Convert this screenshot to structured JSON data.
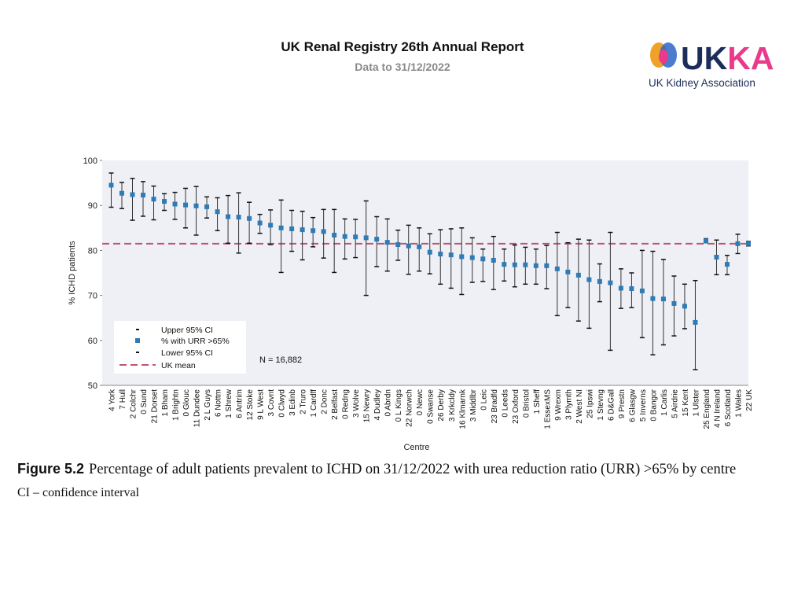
{
  "header": {
    "title": "UK Renal Registry 26th Annual Report",
    "subtitle": "Data to 31/12/2022"
  },
  "logo": {
    "wordmark": "UKKA",
    "tagline": "UK Kidney Association"
  },
  "caption": {
    "figure_label": "Figure 5.2",
    "text": "Percentage of adult patients prevalent to ICHD on 31/12/2022 with urea reduction ratio (URR) >65% by centre",
    "note": "CI – confidence interval"
  },
  "colors": {
    "point": "#2e7bb5",
    "mean_line": "#c0556e",
    "whisker": "#333333",
    "plot_bg": "#eef0f6",
    "logo_orange": "#f0a12a",
    "logo_blue": "#2a66c4",
    "logo_navy": "#1c2d5a",
    "logo_pink": "#ea3a8c"
  },
  "chart_data": {
    "type": "scatter",
    "title": "",
    "xlabel": "Centre",
    "ylabel": "% ICHD patients",
    "ylim": [
      50,
      100
    ],
    "yticks": [
      50,
      60,
      70,
      80,
      90,
      100
    ],
    "uk_mean": 81.5,
    "n_label": "N = 16,882",
    "legend": {
      "upper": "Upper 95% CI",
      "point": "% with URR >65%",
      "lower": "Lower 95% CI",
      "mean": "UK mean"
    },
    "categories": [
      "4 York",
      "7 Hull",
      "2 Colchr",
      "0 Sund",
      "21 Dorset",
      "1 Bham",
      "1 Brightn",
      "0 Glouc",
      "11 Dundee",
      "2 L Guys",
      "6 Nottm",
      "1 Shrew",
      "6 Antrim",
      "12 Stoke",
      "9 L West",
      "3 Covnt",
      "0 Clwyd",
      "3 Edinb",
      "2 Truro",
      "1 Cardff",
      "2 Donc",
      "2 Belfast",
      "0 Redng",
      "3 Wolve",
      "15 Newry",
      "4 Dudley",
      "0 Abrdn",
      "0 L Kings",
      "22 Norwch",
      "0 Newc",
      "0 Swanse",
      "26 Derby",
      "3 Krkcldy",
      "16 Klmarnk",
      "3 Middlbr",
      "0 Leic",
      "23 Bradfd",
      "0 Leeds",
      "23 Oxford",
      "0 Bristol",
      "1 Sheff",
      "1 EssexMS",
      "9 Wrexm",
      "3 Plymth",
      "2 West NI",
      "25 Ipswi",
      "1 Stevng",
      "6 D&Gall",
      "9 Prestn",
      "6 Glasgw",
      "5 Inverns",
      "0 Bangor",
      "1 Carlis",
      "5 Airdrie",
      "15 Kent",
      "1 Ulster",
      "25 England",
      "4 N Ireland",
      "6 Scotland",
      "1 Wales",
      "22 UK"
    ],
    "series": [
      {
        "name": "% with URR >65%",
        "values": [
          94.5,
          92.7,
          92.4,
          92.3,
          91.4,
          90.9,
          90.3,
          90.1,
          89.9,
          89.7,
          88.6,
          87.5,
          87.4,
          87.1,
          86.1,
          85.6,
          85.0,
          84.8,
          84.6,
          84.4,
          84.2,
          83.4,
          83.1,
          83.0,
          82.8,
          82.5,
          81.8,
          81.3,
          81.0,
          80.8,
          79.6,
          79.2,
          79.0,
          78.6,
          78.4,
          78.1,
          77.8,
          76.9,
          76.8,
          76.8,
          76.6,
          76.6,
          75.9,
          75.2,
          74.5,
          73.5,
          73.1,
          72.8,
          71.6,
          71.5,
          71.0,
          69.3,
          69.2,
          68.2,
          67.6,
          64.0,
          82.1,
          78.5,
          76.9,
          81.5,
          81.5
        ]
      },
      {
        "name": "Upper 95% CI",
        "values": [
          97.2,
          95.1,
          96.0,
          95.3,
          94.3,
          92.6,
          92.9,
          93.8,
          94.2,
          91.9,
          91.7,
          92.2,
          92.8,
          90.7,
          88.0,
          89.0,
          91.2,
          88.9,
          88.7,
          87.3,
          89.1,
          89.1,
          87.0,
          86.9,
          91.0,
          87.5,
          87.0,
          84.5,
          85.6,
          85.0,
          83.7,
          84.6,
          84.8,
          85.0,
          82.8,
          80.3,
          83.1,
          80.3,
          81.2,
          80.7,
          80.3,
          81.1,
          84.0,
          81.7,
          82.5,
          82.3,
          77.0,
          84.0,
          75.9,
          75.0,
          80.0,
          79.8,
          78.0,
          74.3,
          72.5,
          73.3,
          82.6,
          82.3,
          78.9,
          83.6,
          82.0
        ]
      },
      {
        "name": "Lower 95% CI",
        "values": [
          89.6,
          89.3,
          86.7,
          87.6,
          86.8,
          88.9,
          86.9,
          85.0,
          83.4,
          87.2,
          84.4,
          81.6,
          79.4,
          81.6,
          83.8,
          81.3,
          75.1,
          79.8,
          77.9,
          80.8,
          78.3,
          75.1,
          78.1,
          78.4,
          70.0,
          76.4,
          75.4,
          77.8,
          74.7,
          75.4,
          74.8,
          72.5,
          71.6,
          70.2,
          72.9,
          73.1,
          71.3,
          73.2,
          71.9,
          72.5,
          72.5,
          71.5,
          65.5,
          67.3,
          64.3,
          62.7,
          68.6,
          57.8,
          67.1,
          67.3,
          60.6,
          56.8,
          59.0,
          61.0,
          62.6,
          53.5,
          81.7,
          74.6,
          74.6,
          79.3,
          81.0
        ]
      }
    ]
  }
}
